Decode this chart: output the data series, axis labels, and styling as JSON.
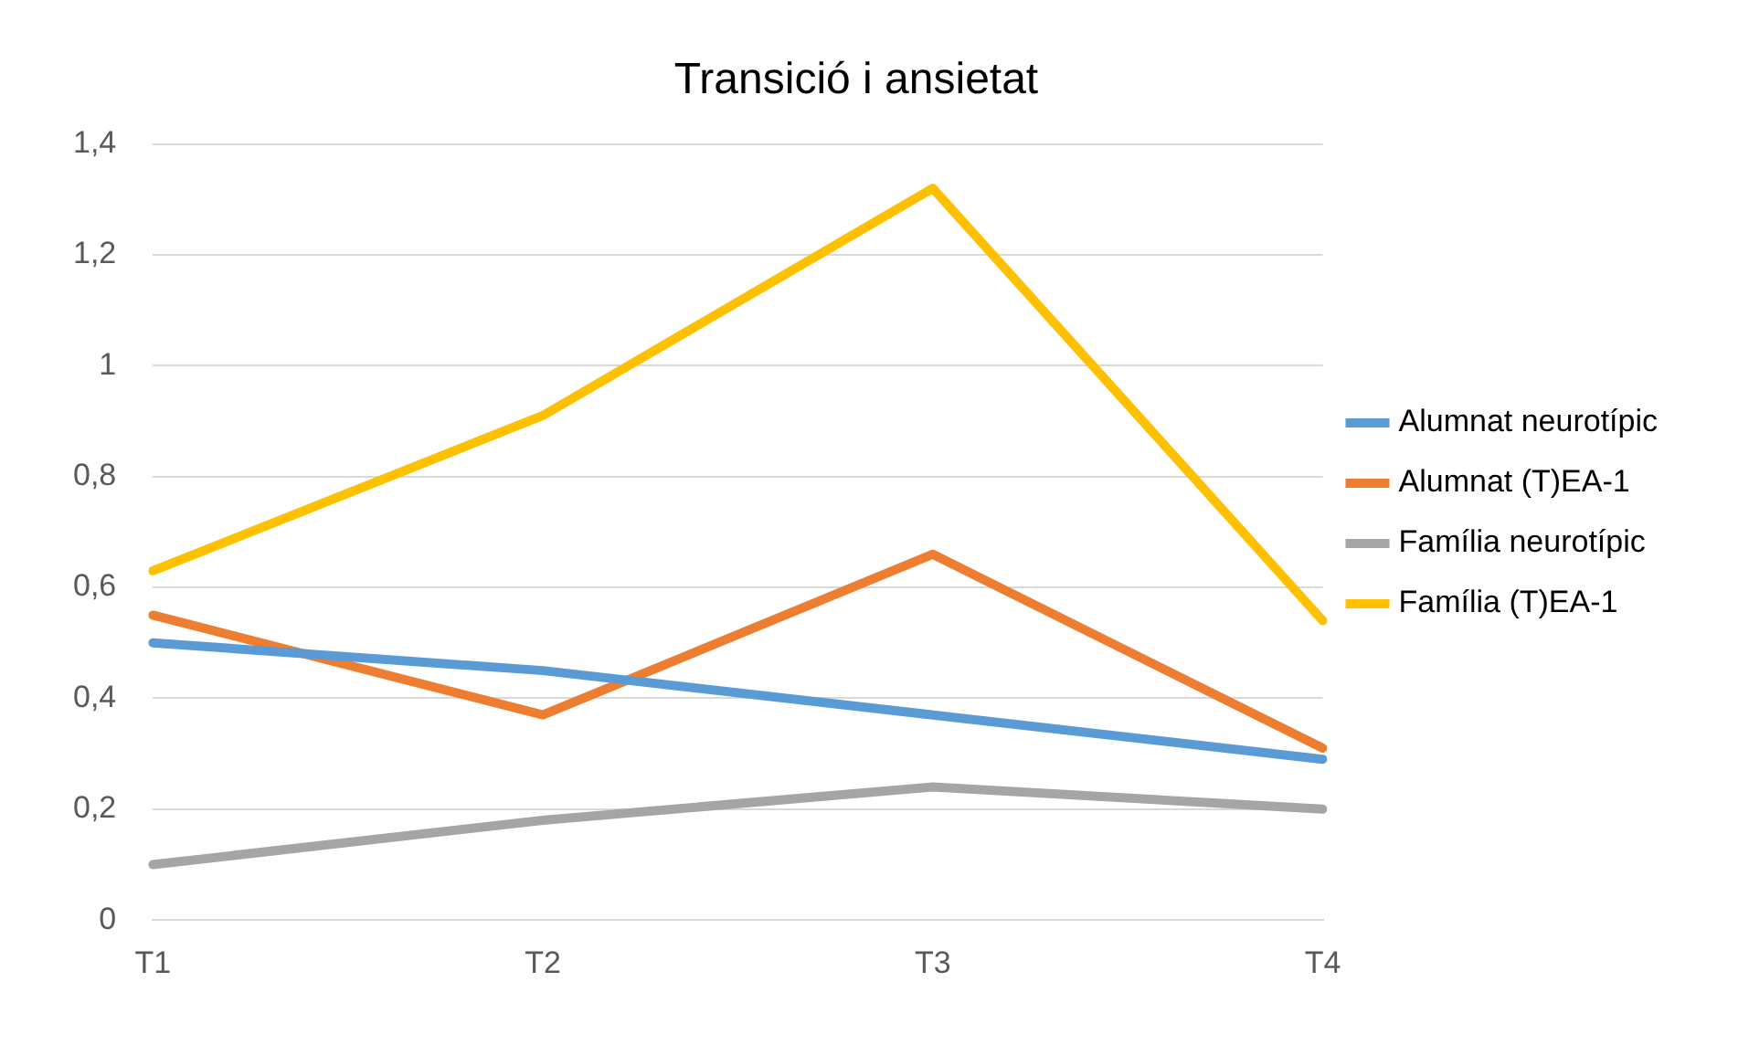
{
  "chart_data": {
    "type": "line",
    "title": "Transició i ansietat",
    "categories": [
      "T1",
      "T2",
      "T3",
      "T4"
    ],
    "series": [
      {
        "name": "Alumnat neurotípic",
        "color": "#5b9bd5",
        "values": [
          0.5,
          0.45,
          0.37,
          0.29
        ]
      },
      {
        "name": "Alumnat (T)EA-1",
        "color": "#ed7d31",
        "values": [
          0.55,
          0.37,
          0.66,
          0.31
        ]
      },
      {
        "name": "Família neurotípic",
        "color": "#a5a5a5",
        "values": [
          0.1,
          0.18,
          0.24,
          0.2
        ]
      },
      {
        "name": "Família (T)EA-1",
        "color": "#ffc000",
        "values": [
          0.63,
          0.91,
          1.32,
          0.54
        ]
      }
    ],
    "ylim": [
      0,
      1.4
    ],
    "yticks": [
      0,
      {
        "value": 0.2,
        "label": "0,2"
      },
      {
        "value": 0.4,
        "label": "0,4"
      },
      {
        "value": 0.6,
        "label": "0,6"
      },
      {
        "value": 0.8,
        "label": "0,8"
      },
      1,
      {
        "value": 1.2,
        "label": "1,2"
      },
      {
        "value": 1.4,
        "label": "1,4"
      }
    ],
    "grid": "y",
    "legend": "right",
    "marker": "none",
    "line_style": "solid"
  }
}
